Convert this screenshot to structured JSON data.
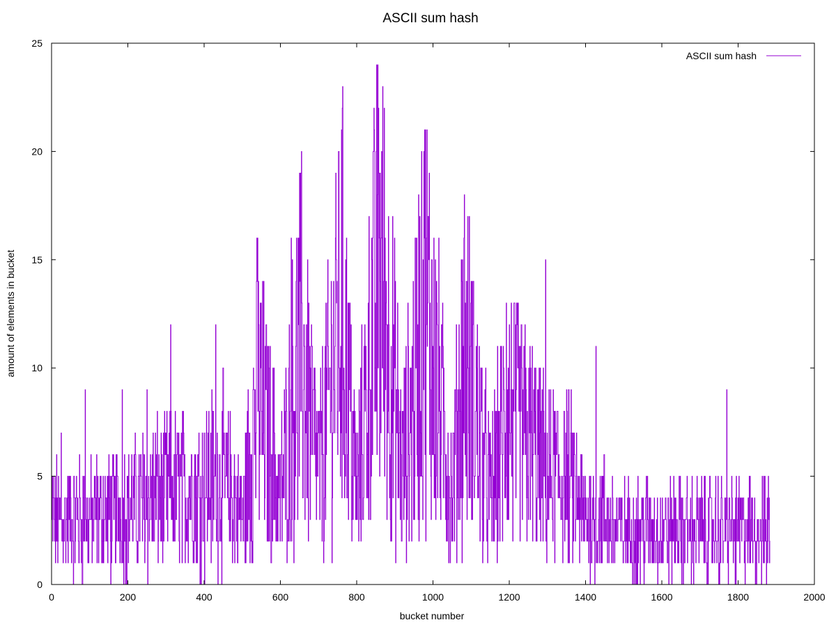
{
  "chart_data": {
    "type": "line",
    "title": "ASCII sum hash",
    "xlabel": "bucket number",
    "ylabel": "amount of elements in bucket",
    "xlim": [
      0,
      2000
    ],
    "ylim": [
      0,
      25
    ],
    "xticks": [
      "0",
      "200",
      "400",
      "600",
      "800",
      "1000",
      "1200",
      "1400",
      "1600",
      "1800",
      "2000"
    ],
    "yticks": [
      "0",
      "5",
      "10",
      "15",
      "20",
      "25"
    ],
    "grid": false,
    "legend_position": "top-right",
    "series": [
      {
        "name": "ASCII sum hash",
        "color": "#9400d3",
        "x_start": 0,
        "x_step": 1,
        "n_points": 1884,
        "envelope_x": [
          0,
          100,
          200,
          300,
          400,
          450,
          500,
          540,
          600,
          650,
          700,
          760,
          800,
          860,
          920,
          980,
          1050,
          1080,
          1150,
          1200,
          1300,
          1350,
          1400,
          1450,
          1500,
          1600,
          1700,
          1800,
          1884
        ],
        "envelope_mean": [
          3,
          3,
          3.5,
          4.2,
          4.5,
          5,
          3,
          9,
          4,
          11,
          5,
          13,
          4,
          15,
          5,
          13,
          4,
          11,
          4,
          8,
          5,
          5,
          3,
          3,
          2.5,
          2.5,
          2.5,
          2.5,
          2.5
        ],
        "peaks": [
          {
            "x": 25,
            "y": 7
          },
          {
            "x": 88,
            "y": 9
          },
          {
            "x": 185,
            "y": 9
          },
          {
            "x": 250,
            "y": 9
          },
          {
            "x": 312,
            "y": 12
          },
          {
            "x": 430,
            "y": 12
          },
          {
            "x": 540,
            "y": 16
          },
          {
            "x": 628,
            "y": 16
          },
          {
            "x": 655,
            "y": 20
          },
          {
            "x": 762,
            "y": 22
          },
          {
            "x": 857,
            "y": 22
          },
          {
            "x": 976,
            "y": 20
          },
          {
            "x": 1082,
            "y": 18
          },
          {
            "x": 1192,
            "y": 13
          },
          {
            "x": 1295,
            "y": 15
          },
          {
            "x": 1427,
            "y": 11
          },
          {
            "x": 1770,
            "y": 9
          }
        ]
      }
    ]
  }
}
